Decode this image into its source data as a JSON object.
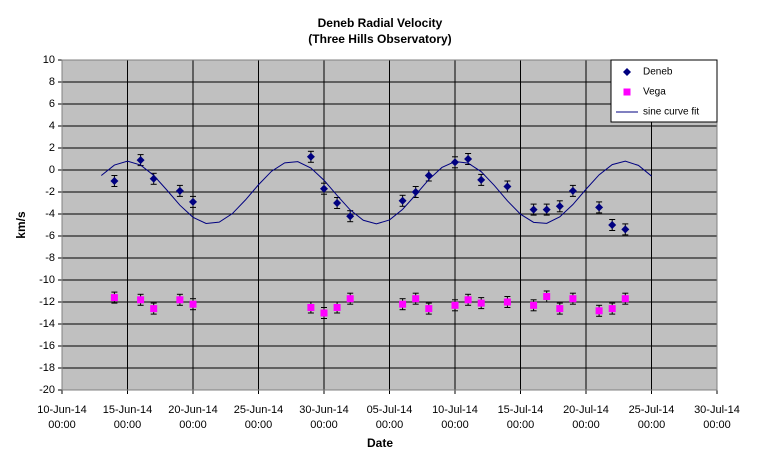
{
  "chart_data": {
    "type": "scatter",
    "title": "Deneb Radial Velocity",
    "subtitle": "(Three Hills Observatory)",
    "x_label": "Date",
    "y_label": "km/s",
    "xlim": [
      "10-Jun-14 00:00",
      "30-Jul-14 00:00"
    ],
    "xticks": [
      "10-Jun-14 00:00",
      "15-Jun-14 00:00",
      "20-Jun-14 00:00",
      "25-Jun-14 00:00",
      "30-Jun-14 00:00",
      "05-Jul-14 00:00",
      "10-Jul-14 00:00",
      "15-Jul-14 00:00",
      "20-Jul-14 00:00",
      "25-Jul-14 00:00",
      "30-Jul-14 00:00"
    ],
    "ylim": [
      -20,
      10
    ],
    "yticks": [
      -20,
      -18,
      -16,
      -14,
      -12,
      -10,
      -8,
      -6,
      -4,
      -2,
      0,
      2,
      4,
      6,
      8,
      10
    ],
    "grid": true,
    "legend": "top-right",
    "series": [
      {
        "name": "Deneb",
        "color": "#000080",
        "marker": "diamond",
        "error": 0.5,
        "x": [
          "14-Jun-14 00:00",
          "16-Jun-14 00:00",
          "17-Jun-14 00:00",
          "19-Jun-14 00:00",
          "20-Jun-14 00:00",
          "29-Jun-14 00:00",
          "30-Jun-14 00:00",
          "01-Jul-14 00:00",
          "02-Jul-14 00:00",
          "06-Jul-14 00:00",
          "07-Jul-14 00:00",
          "08-Jul-14 00:00",
          "10-Jul-14 00:00",
          "11-Jul-14 00:00",
          "12-Jul-14 00:00",
          "14-Jul-14 00:00",
          "16-Jul-14 00:00",
          "17-Jul-14 00:00",
          "18-Jul-14 00:00",
          "19-Jul-14 00:00",
          "21-Jul-14 00:00",
          "22-Jul-14 00:00",
          "23-Jul-14 00:00"
        ],
        "values": [
          -1,
          0.9,
          -0.8,
          -1.9,
          -2.9,
          1.2,
          -1.7,
          -3,
          -4.2,
          -2.8,
          -2,
          -0.5,
          0.7,
          1,
          -0.9,
          -1.5,
          -3.6,
          -3.6,
          -3.3,
          -1.9,
          -3.4,
          -5,
          -5.4
        ]
      },
      {
        "name": "Vega",
        "color": "#FF00FF",
        "marker": "square",
        "error": 0.5,
        "x": [
          "14-Jun-14 00:00",
          "16-Jun-14 00:00",
          "17-Jun-14 00:00",
          "19-Jun-14 00:00",
          "20-Jun-14 00:00",
          "29-Jun-14 00:00",
          "30-Jun-14 00:00",
          "01-Jul-14 00:00",
          "02-Jul-14 00:00",
          "06-Jul-14 00:00",
          "07-Jul-14 00:00",
          "08-Jul-14 00:00",
          "10-Jul-14 00:00",
          "11-Jul-14 00:00",
          "12-Jul-14 00:00",
          "14-Jul-14 00:00",
          "16-Jul-14 00:00",
          "17-Jul-14 00:00",
          "18-Jul-14 00:00",
          "19-Jul-14 00:00",
          "21-Jul-14 00:00",
          "22-Jul-14 00:00",
          "23-Jul-14 00:00"
        ],
        "values": [
          -11.6,
          -11.8,
          -12.6,
          -11.8,
          -12.2,
          -12.5,
          -13,
          -12.5,
          -11.7,
          -12.2,
          -11.7,
          -12.6,
          -12.3,
          -11.8,
          -12.1,
          -12,
          -12.3,
          -11.5,
          -12.6,
          -11.7,
          -12.8,
          -12.6,
          -11.7
        ]
      },
      {
        "name": "sine curve fit",
        "color": "#000080",
        "marker": "line",
        "x": [
          "13-Jun-14 00:00",
          "14-Jun-14 00:00",
          "15-Jun-14 00:00",
          "16-Jun-14 00:00",
          "17-Jun-14 00:00",
          "18-Jun-14 00:00",
          "19-Jun-14 00:00",
          "20-Jun-14 00:00",
          "21-Jun-14 00:00",
          "22-Jun-14 00:00",
          "23-Jun-14 00:00",
          "24-Jun-14 00:00",
          "25-Jun-14 00:00",
          "26-Jun-14 00:00",
          "27-Jun-14 00:00",
          "28-Jun-14 00:00",
          "29-Jun-14 00:00",
          "30-Jun-14 00:00",
          "01-Jul-14 00:00",
          "02-Jul-14 00:00",
          "03-Jul-14 00:00",
          "04-Jul-14 00:00",
          "05-Jul-14 00:00",
          "06-Jul-14 00:00",
          "07-Jul-14 00:00",
          "08-Jul-14 00:00",
          "09-Jul-14 00:00",
          "10-Jul-14 00:00",
          "11-Jul-14 00:00",
          "12-Jul-14 00:00",
          "13-Jul-14 00:00",
          "14-Jul-14 00:00",
          "15-Jul-14 00:00",
          "16-Jul-14 00:00",
          "17-Jul-14 00:00",
          "18-Jul-14 00:00",
          "19-Jul-14 00:00",
          "20-Jul-14 00:00",
          "21-Jul-14 00:00",
          "22-Jul-14 00:00",
          "23-Jul-14 00:00",
          "24-Jul-14 00:00",
          "25-Jul-14 00:00"
        ],
        "values": [
          -0.5,
          0.45,
          0.8,
          0.45,
          -0.49,
          -1.82,
          -3.2,
          -4.3,
          -4.86,
          -4.74,
          -3.97,
          -2.73,
          -1.34,
          -0.11,
          0.65,
          0.76,
          0.18,
          -0.93,
          -2.31,
          -3.63,
          -4.57,
          -4.9,
          -4.54,
          -3.58,
          -2.25,
          -0.87,
          0.23,
          0.77,
          0.63,
          -0.15,
          -1.4,
          -2.8,
          -4.02,
          -4.76,
          -4.85,
          -4.26,
          -3.14,
          -1.75,
          -0.44,
          0.49,
          0.8,
          0.42,
          -0.55
        ]
      }
    ]
  }
}
